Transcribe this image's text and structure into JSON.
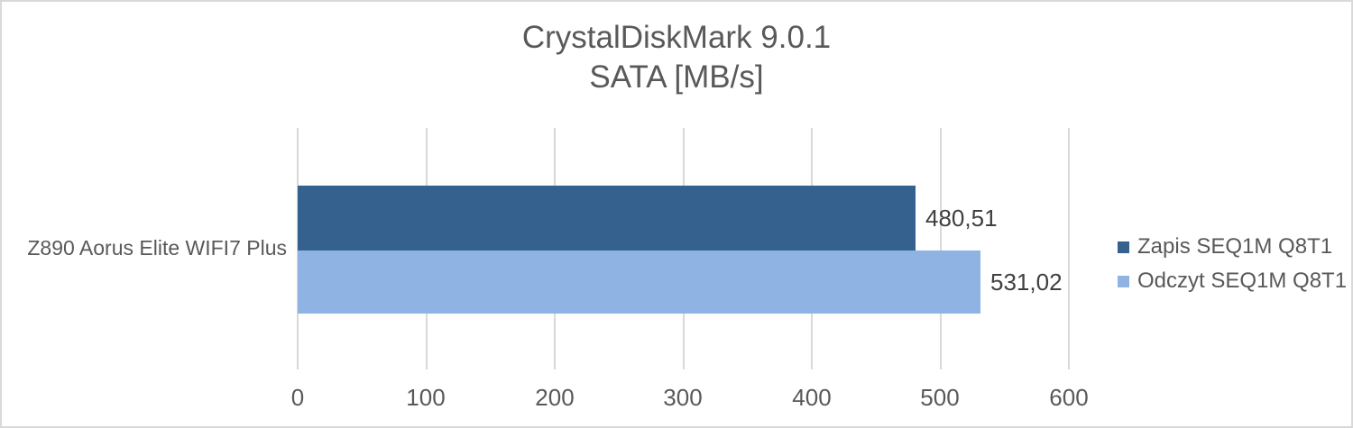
{
  "chart_data": {
    "type": "bar",
    "orientation": "horizontal",
    "title": "CrystalDiskMark 9.0.1",
    "subtitle": "SATA [MB/s]",
    "categories": [
      "Z890 Aorus Elite WIFI7 Plus"
    ],
    "series": [
      {
        "name": "Zapis SEQ1M Q8T1",
        "values": [
          480.51
        ],
        "value_label": "480,51",
        "color": "#35618f"
      },
      {
        "name": "Odczyt SEQ1M Q8T1",
        "values": [
          531.02
        ],
        "value_label": "531,02",
        "color": "#8fb3e3"
      }
    ],
    "xlim": [
      0,
      600
    ],
    "x_ticks": [
      "0",
      "100",
      "200",
      "300",
      "400",
      "500",
      "600"
    ],
    "grid": true,
    "gridline_color": "#d9d9d9",
    "legend_position": "right",
    "title_color": "#595959",
    "data_label_color": "#404040"
  }
}
